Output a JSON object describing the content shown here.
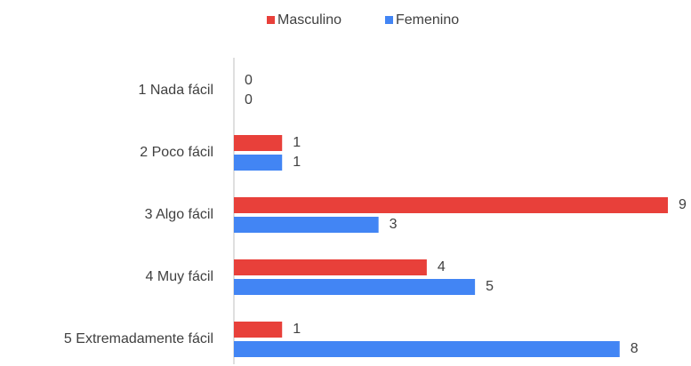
{
  "chart_data": {
    "type": "hbar",
    "categories": [
      "1  Nada fácil",
      "2  Poco fácil",
      "3  Algo fácil",
      "4  Muy fácil",
      "5  Extremadamente fácil"
    ],
    "series": [
      {
        "name": "Masculino",
        "color": "#e8403a",
        "values": [
          0,
          1,
          9,
          4,
          1
        ]
      },
      {
        "name": "Femenino",
        "color": "#4285f4",
        "values": [
          0,
          1,
          3,
          5,
          8
        ]
      }
    ],
    "xlim": [
      0,
      9
    ],
    "legend": "top"
  }
}
